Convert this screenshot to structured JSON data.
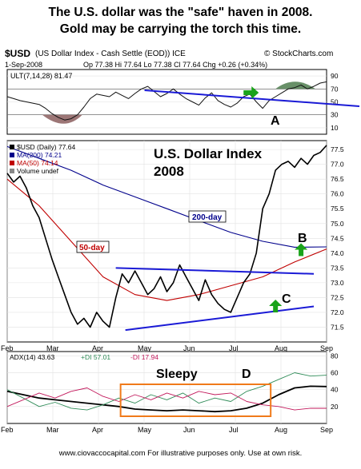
{
  "header": {
    "line1": "The U.S. dollar was the \"safe\" haven in 2008.",
    "line2": "Gold may be carrying the torch this time."
  },
  "chart_header": {
    "symbol": "$USD",
    "description": "(US Dollar Index - Cash Settle (EOD)) ICE",
    "brand": "© StockCharts.com",
    "date": "1-Sep-2008",
    "quote": "Op 77.38  Hi 77.64  Lo 77.38  Cl 77.64  Chg +0.26 (+0.34%)"
  },
  "footer": {
    "text": "www.ciovaccocapital.com   For illustrative purposes only.   Use at own risk."
  },
  "chart_data": [
    {
      "type": "line",
      "panel": "ULT",
      "legend": "ULT(7,14,28) 81.47",
      "ylim": [
        0,
        100
      ],
      "yticks": [
        10,
        30,
        50,
        70,
        90
      ],
      "x": [
        0,
        0.02,
        0.04,
        0.06,
        0.08,
        0.1,
        0.12,
        0.14,
        0.16,
        0.18,
        0.2,
        0.22,
        0.24,
        0.26,
        0.28,
        0.3,
        0.32,
        0.34,
        0.36,
        0.38,
        0.4,
        0.42,
        0.44,
        0.46,
        0.48,
        0.5,
        0.52,
        0.54,
        0.56,
        0.58,
        0.6,
        0.62,
        0.64,
        0.66,
        0.68,
        0.7,
        0.72,
        0.74,
        0.76,
        0.78,
        0.8,
        0.82,
        0.84,
        0.86,
        0.88,
        0.9,
        0.92,
        0.94,
        0.96,
        0.98,
        1.0
      ],
      "values": [
        58,
        55,
        52,
        50,
        48,
        46,
        40,
        32,
        26,
        22,
        24,
        30,
        42,
        55,
        62,
        60,
        58,
        65,
        60,
        55,
        63,
        70,
        74,
        66,
        58,
        63,
        70,
        62,
        55,
        50,
        45,
        56,
        64,
        52,
        46,
        42,
        48,
        58,
        62,
        50,
        40,
        52,
        58,
        64,
        70,
        72,
        76,
        70,
        74,
        79,
        81
      ],
      "annotations": [
        "A"
      ]
    },
    {
      "type": "line",
      "panel": "price",
      "title": "U.S. Dollar Index 2008",
      "ylim": [
        71.0,
        77.8
      ],
      "yticks": [
        71.5,
        72.0,
        72.5,
        73.0,
        73.5,
        74.0,
        74.5,
        75.0,
        75.5,
        76.0,
        76.5,
        77.0,
        77.5
      ],
      "xtick_labels": [
        "Feb",
        "Mar",
        "Apr",
        "May",
        "Jun",
        "Jul",
        "Aug",
        "Sep"
      ],
      "series": [
        {
          "name": "$USD (Daily) 77.64",
          "color": "#000000",
          "x": [
            0,
            0.02,
            0.04,
            0.06,
            0.08,
            0.1,
            0.12,
            0.14,
            0.16,
            0.18,
            0.2,
            0.22,
            0.24,
            0.26,
            0.28,
            0.3,
            0.32,
            0.34,
            0.36,
            0.38,
            0.4,
            0.42,
            0.44,
            0.46,
            0.48,
            0.5,
            0.52,
            0.54,
            0.56,
            0.58,
            0.6,
            0.62,
            0.64,
            0.66,
            0.68,
            0.7,
            0.72,
            0.74,
            0.76,
            0.78,
            0.8,
            0.82,
            0.84,
            0.86,
            0.88,
            0.9,
            0.92,
            0.94,
            0.96,
            0.98,
            1.0
          ],
          "values": [
            76.7,
            76.4,
            76.6,
            76.2,
            75.6,
            75.2,
            74.5,
            73.8,
            73.2,
            72.6,
            72.0,
            71.6,
            71.8,
            71.5,
            72.0,
            71.7,
            71.5,
            72.5,
            73.3,
            73.0,
            73.4,
            73.0,
            72.6,
            72.8,
            73.2,
            72.7,
            73.0,
            73.6,
            73.2,
            72.8,
            72.4,
            73.1,
            72.6,
            72.3,
            72.1,
            72.0,
            72.5,
            73.0,
            73.3,
            74.0,
            75.5,
            76.0,
            76.8,
            77.0,
            77.1,
            76.9,
            77.2,
            77.0,
            77.3,
            77.4,
            77.64
          ]
        },
        {
          "name": "MA(200) 74.21",
          "color": "#00008b",
          "x": [
            0,
            0.1,
            0.2,
            0.3,
            0.4,
            0.5,
            0.6,
            0.7,
            0.8,
            0.9,
            1.0
          ],
          "values": [
            77.6,
            77.2,
            76.8,
            76.3,
            75.9,
            75.5,
            75.1,
            74.7,
            74.4,
            74.2,
            74.21
          ],
          "label": "200-day"
        },
        {
          "name": "MA(50) 74.14",
          "color": "#c00000",
          "x": [
            0,
            0.1,
            0.2,
            0.3,
            0.4,
            0.5,
            0.6,
            0.7,
            0.8,
            0.9,
            1.0
          ],
          "values": [
            76.5,
            75.6,
            74.4,
            73.2,
            72.6,
            72.4,
            72.6,
            72.9,
            73.2,
            73.7,
            74.14
          ],
          "label": "50-day"
        }
      ],
      "volume_note": "Volume undef",
      "annotations": [
        "B",
        "C"
      ]
    },
    {
      "type": "line",
      "panel": "ADX",
      "legend": {
        "adx": "ADX(14) 43.63",
        "plus_di": "+DI 57.01",
        "minus_di": "-DI 17.94"
      },
      "ylim": [
        0,
        85
      ],
      "yticks": [
        20,
        40,
        60,
        80
      ],
      "series": [
        {
          "name": "ADX(14) 43.63",
          "color": "#000000",
          "x": [
            0,
            0.05,
            0.1,
            0.15,
            0.2,
            0.25,
            0.3,
            0.35,
            0.4,
            0.45,
            0.5,
            0.55,
            0.6,
            0.65,
            0.7,
            0.75,
            0.8,
            0.85,
            0.9,
            0.95,
            1.0
          ],
          "values": [
            38,
            34,
            30,
            28,
            26,
            24,
            22,
            20,
            17,
            16,
            15,
            16,
            15,
            14,
            15,
            18,
            24,
            34,
            42,
            44,
            43.63
          ]
        },
        {
          "name": "+DI 57.01",
          "color": "#2e8b57",
          "x": [
            0,
            0.05,
            0.1,
            0.15,
            0.2,
            0.25,
            0.3,
            0.35,
            0.4,
            0.45,
            0.5,
            0.55,
            0.6,
            0.65,
            0.7,
            0.75,
            0.8,
            0.85,
            0.9,
            0.95,
            1.0
          ],
          "values": [
            40,
            30,
            20,
            25,
            18,
            16,
            22,
            30,
            24,
            34,
            28,
            36,
            24,
            30,
            26,
            38,
            44,
            52,
            60,
            56,
            57.01
          ]
        },
        {
          "name": "-DI 17.94",
          "color": "#c2185b",
          "x": [
            0,
            0.05,
            0.1,
            0.15,
            0.2,
            0.25,
            0.3,
            0.35,
            0.4,
            0.45,
            0.5,
            0.55,
            0.6,
            0.65,
            0.7,
            0.75,
            0.8,
            0.85,
            0.9,
            0.95,
            1.0
          ],
          "values": [
            20,
            28,
            36,
            30,
            38,
            42,
            32,
            26,
            34,
            28,
            36,
            30,
            38,
            34,
            36,
            26,
            22,
            20,
            16,
            18,
            17.94
          ]
        }
      ],
      "annotations": [
        "Sleepy",
        "D"
      ]
    }
  ]
}
